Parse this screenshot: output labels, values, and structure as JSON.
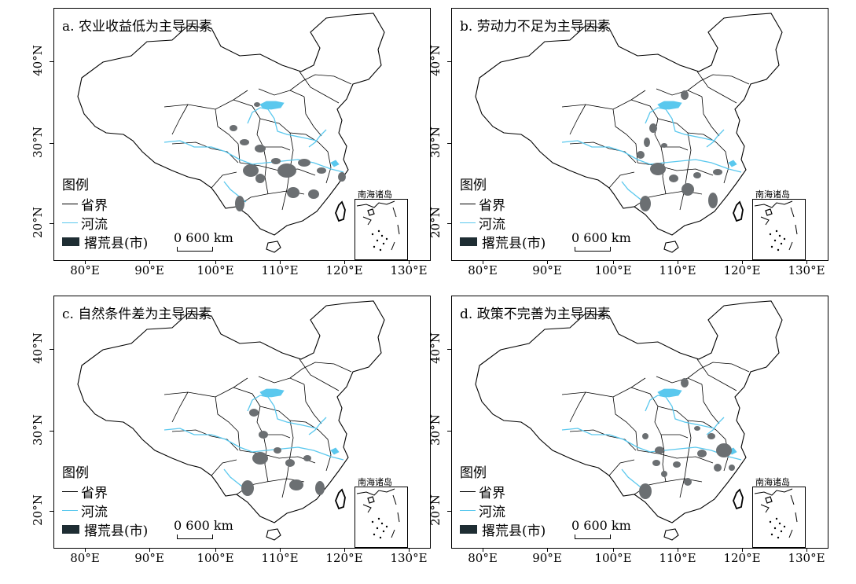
{
  "panels": [
    {
      "title": "a. 农业收益低为主导因素"
    },
    {
      "title": "b. 劳动力不足为主导因素"
    },
    {
      "title": "c. 自然条件差为主导因素"
    },
    {
      "title": "d. 政策不完善为主导因素"
    }
  ],
  "lat_labels": [
    "40°N",
    "30°N",
    "20°N"
  ],
  "lon_labels": [
    "80°E",
    "90°E",
    "100°E",
    "110°E",
    "120°E",
    "130°E"
  ],
  "legend": {
    "title": "图例",
    "boundary": "省界",
    "river": "河流",
    "abandoned": "撂荒县(市)"
  },
  "scale": {
    "zero": "0",
    "value": "600 km"
  },
  "inset_label": "南海诸岛",
  "colors": {
    "boundary": "#000000",
    "river": "#5ac8ee",
    "county": "#6b6f72",
    "legend_county": "#1e2d33"
  }
}
